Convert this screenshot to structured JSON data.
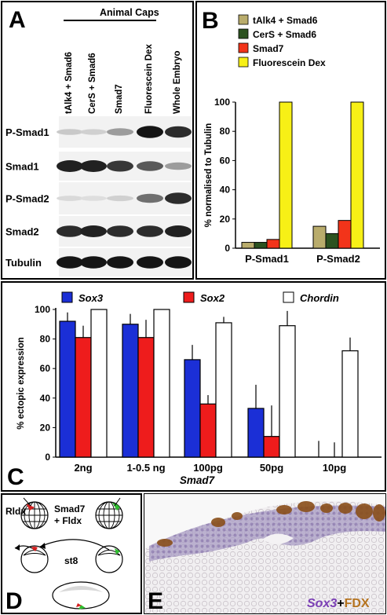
{
  "panel_labels": {
    "a": "A",
    "b": "B",
    "c": "C",
    "d": "D",
    "e": "E"
  },
  "panel_a": {
    "group_header": "Animal Caps",
    "lanes": [
      "tAlk4 + Smad6",
      "CerS + Smad6",
      "Smad7",
      "Fluorescein Dex",
      "Whole Embryo"
    ],
    "rows": [
      "P-Smad1",
      "Smad1",
      "P-Smad2",
      "Smad2",
      "Tubulin"
    ],
    "band_intensity": [
      [
        0.15,
        0.12,
        0.35,
        0.95,
        0.85
      ],
      [
        0.9,
        0.9,
        0.8,
        0.65,
        0.35
      ],
      [
        0.08,
        0.06,
        0.12,
        0.55,
        0.85
      ],
      [
        0.85,
        0.9,
        0.85,
        0.85,
        0.9
      ],
      [
        0.95,
        0.95,
        0.95,
        0.95,
        0.95
      ]
    ]
  },
  "chart_data": [
    {
      "type": "bar",
      "panel": "B",
      "categories": [
        "P-Smad1",
        "P-Smad2"
      ],
      "series": [
        {
          "name": "tAlk4 + Smad6",
          "color": "#b9ac6c",
          "values": [
            4,
            15
          ]
        },
        {
          "name": "CerS + Smad6",
          "color": "#2c5220",
          "values": [
            4,
            10
          ]
        },
        {
          "name": "Smad7",
          "color": "#f2341a",
          "values": [
            6,
            19
          ]
        },
        {
          "name": "Fluorescein Dex",
          "color": "#f7f016",
          "values": [
            100,
            100
          ]
        }
      ],
      "ylabel": "% normalised to Tubulin",
      "yticks": [
        0,
        20,
        40,
        60,
        80,
        100
      ],
      "ylim": [
        0,
        100
      ],
      "grid": false,
      "legend": "top"
    },
    {
      "type": "bar",
      "panel": "C",
      "categories": [
        "2ng",
        "1-0.5 ng",
        "100pg",
        "50pg",
        "10pg"
      ],
      "series": [
        {
          "name": "Sox3",
          "color": "#1b2fd6",
          "values": [
            92,
            90,
            66,
            33,
            0
          ],
          "error": [
            6,
            7,
            10,
            16,
            11
          ]
        },
        {
          "name": "Sox2",
          "color": "#ee1c1c",
          "values": [
            81,
            81,
            36,
            14,
            0
          ],
          "error": [
            8,
            12,
            6,
            21,
            10
          ]
        },
        {
          "name": "Chordin",
          "color": "#ffffff",
          "values": [
            100,
            100,
            91,
            89,
            72
          ],
          "error": [
            0,
            0,
            4,
            10,
            9
          ]
        }
      ],
      "xlabel": "Smad7",
      "ylabel": "% ectopic expression",
      "yticks": [
        0,
        20,
        40,
        60,
        80,
        100
      ],
      "ylim": [
        0,
        100
      ],
      "grid": false,
      "legend": "top"
    }
  ],
  "panel_d": {
    "left_label": "Rldx",
    "center_label_1": "Smad7",
    "center_label_2": "+ Fldx",
    "stage_label": "st8"
  },
  "panel_e": {
    "caption_a": "Sox3",
    "caption_plus": "+",
    "caption_b": "FDX",
    "caption_a_color": "#7b3fb5",
    "caption_b_color": "#b5731f"
  }
}
